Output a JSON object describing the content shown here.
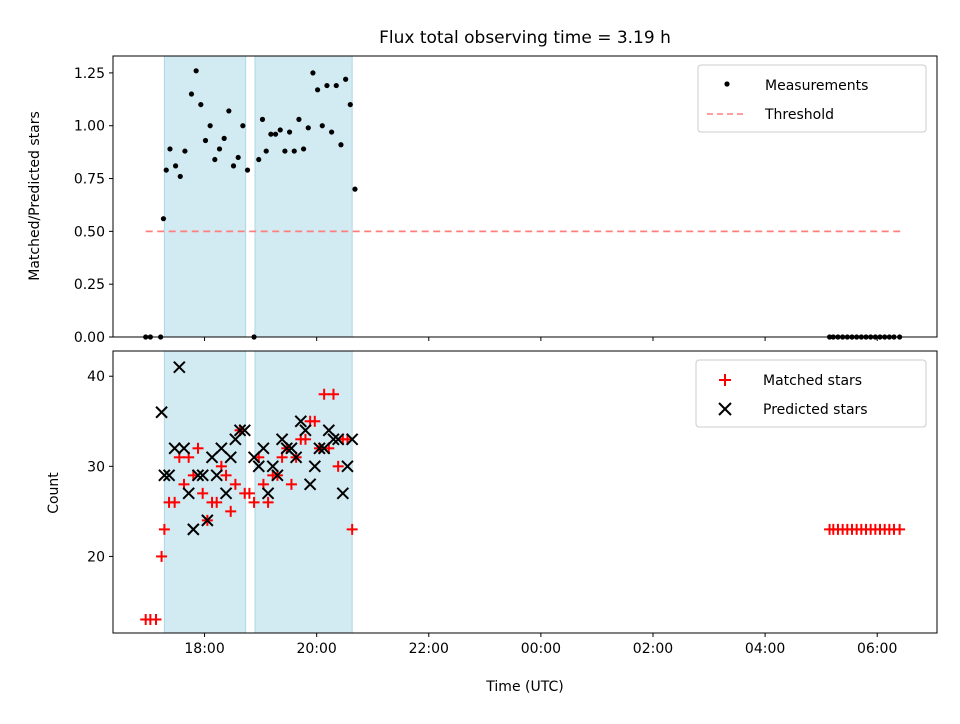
{
  "chart_data": [
    {
      "type": "scatter",
      "title": "Flux total observing time = 3.19 h",
      "xlabel": "",
      "ylabel": "Matched/Predicted stars",
      "ylim": [
        0,
        1.33
      ],
      "xlim": [
        "16:22",
        "07:04"
      ],
      "y_ticks": [
        "0.00",
        "0.25",
        "0.50",
        "0.75",
        "1.00",
        "1.25"
      ],
      "x_tick_labels_shown": false,
      "legend_position": "top-right",
      "legend": [
        "Measurements",
        "Threshold"
      ],
      "shaded_intervals": [
        [
          "17:17",
          "18:44"
        ],
        [
          "18:54",
          "20:38"
        ]
      ],
      "threshold": {
        "name": "Threshold",
        "value": 0.5,
        "x_range": [
          "16:57",
          "06:25"
        ],
        "color": "#ff7f7f",
        "style": "dashed"
      },
      "series": [
        {
          "name": "Measurements",
          "marker": "dot",
          "color": "#000000",
          "points": [
            [
              "16:57",
              0.0
            ],
            [
              "17:02",
              0.0
            ],
            [
              "17:13",
              0.0
            ],
            [
              "17:16",
              0.56
            ],
            [
              "17:19",
              0.79
            ],
            [
              "17:23",
              0.89
            ],
            [
              "17:29",
              0.81
            ],
            [
              "17:34",
              0.76
            ],
            [
              "17:39",
              0.88
            ],
            [
              "17:46",
              1.15
            ],
            [
              "17:51",
              1.26
            ],
            [
              "17:56",
              1.1
            ],
            [
              "18:01",
              0.93
            ],
            [
              "18:06",
              1.0
            ],
            [
              "18:11",
              0.84
            ],
            [
              "18:16",
              0.89
            ],
            [
              "18:21",
              0.94
            ],
            [
              "18:26",
              1.07
            ],
            [
              "18:31",
              0.81
            ],
            [
              "18:36",
              0.85
            ],
            [
              "18:41",
              1.0
            ],
            [
              "18:46",
              0.79
            ],
            [
              "18:53",
              0.0
            ],
            [
              "18:58",
              0.84
            ],
            [
              "19:02",
              1.03
            ],
            [
              "19:06",
              0.88
            ],
            [
              "19:11",
              0.96
            ],
            [
              "19:16",
              0.96
            ],
            [
              "19:21",
              0.98
            ],
            [
              "19:26",
              0.88
            ],
            [
              "19:31",
              0.97
            ],
            [
              "19:36",
              0.88
            ],
            [
              "19:41",
              1.03
            ],
            [
              "19:46",
              0.89
            ],
            [
              "19:51",
              0.99
            ],
            [
              "19:56",
              1.25
            ],
            [
              "20:01",
              1.17
            ],
            [
              "20:06",
              1.0
            ],
            [
              "20:11",
              1.19
            ],
            [
              "20:16",
              0.97
            ],
            [
              "20:21",
              1.19
            ],
            [
              "20:26",
              0.91
            ],
            [
              "20:31",
              1.22
            ],
            [
              "20:36",
              1.1
            ],
            [
              "20:41",
              0.7
            ],
            [
              "05:09",
              0.0
            ],
            [
              "05:13",
              0.0
            ],
            [
              "05:18",
              0.0
            ],
            [
              "05:23",
              0.0
            ],
            [
              "05:28",
              0.0
            ],
            [
              "05:33",
              0.0
            ],
            [
              "05:38",
              0.0
            ],
            [
              "05:43",
              0.0
            ],
            [
              "05:48",
              0.0
            ],
            [
              "05:53",
              0.0
            ],
            [
              "05:58",
              0.0
            ],
            [
              "06:03",
              0.0
            ],
            [
              "06:08",
              0.0
            ],
            [
              "06:13",
              0.0
            ],
            [
              "06:18",
              0.0
            ],
            [
              "06:24",
              0.0
            ]
          ]
        }
      ]
    },
    {
      "type": "scatter",
      "title": "",
      "xlabel": "Time (UTC)",
      "ylabel": "Count",
      "ylim": [
        11.5,
        42.8
      ],
      "xlim": [
        "16:22",
        "07:04"
      ],
      "y_ticks": [
        "20",
        "30",
        "40"
      ],
      "x_ticks": [
        "18:00",
        "20:00",
        "22:00",
        "00:00",
        "02:00",
        "04:00",
        "06:00"
      ],
      "legend_position": "top-right",
      "legend": [
        "Matched stars",
        "Predicted stars"
      ],
      "shaded_intervals": [
        [
          "17:17",
          "18:44"
        ],
        [
          "18:54",
          "20:38"
        ]
      ],
      "series": [
        {
          "name": "Matched stars",
          "marker": "plus",
          "color": "#ff0000",
          "points": [
            [
              "16:57",
              13
            ],
            [
              "17:02",
              13
            ],
            [
              "17:08",
              13
            ],
            [
              "17:14",
              20
            ],
            [
              "17:17",
              23
            ],
            [
              "17:22",
              26
            ],
            [
              "17:28",
              26
            ],
            [
              "17:33",
              31
            ],
            [
              "17:38",
              28
            ],
            [
              "17:43",
              31
            ],
            [
              "17:48",
              29
            ],
            [
              "17:53",
              32
            ],
            [
              "17:58",
              27
            ],
            [
              "18:03",
              24
            ],
            [
              "18:08",
              26
            ],
            [
              "18:13",
              26
            ],
            [
              "18:18",
              30
            ],
            [
              "18:23",
              29
            ],
            [
              "18:28",
              25
            ],
            [
              "18:33",
              28
            ],
            [
              "18:38",
              34
            ],
            [
              "18:43",
              27
            ],
            [
              "18:48",
              27
            ],
            [
              "18:53",
              26
            ],
            [
              "18:58",
              31
            ],
            [
              "19:03",
              28
            ],
            [
              "19:08",
              26
            ],
            [
              "19:13",
              29
            ],
            [
              "19:18",
              29
            ],
            [
              "19:23",
              31
            ],
            [
              "19:28",
              32
            ],
            [
              "19:33",
              28
            ],
            [
              "19:38",
              31
            ],
            [
              "19:43",
              33
            ],
            [
              "19:48",
              33
            ],
            [
              "19:53",
              35
            ],
            [
              "19:58",
              35
            ],
            [
              "20:03",
              32
            ],
            [
              "20:08",
              38
            ],
            [
              "20:13",
              32
            ],
            [
              "20:18",
              38
            ],
            [
              "20:23",
              30
            ],
            [
              "20:28",
              33
            ],
            [
              "20:33",
              33
            ],
            [
              "20:38",
              23
            ],
            [
              "05:09",
              23
            ],
            [
              "05:13",
              23
            ],
            [
              "05:18",
              23
            ],
            [
              "05:23",
              23
            ],
            [
              "05:28",
              23
            ],
            [
              "05:33",
              23
            ],
            [
              "05:38",
              23
            ],
            [
              "05:43",
              23
            ],
            [
              "05:48",
              23
            ],
            [
              "05:53",
              23
            ],
            [
              "05:58",
              23
            ],
            [
              "06:03",
              23
            ],
            [
              "06:08",
              23
            ],
            [
              "06:13",
              23
            ],
            [
              "06:18",
              23
            ],
            [
              "06:24",
              23
            ]
          ]
        },
        {
          "name": "Predicted stars",
          "marker": "x",
          "color": "#000000",
          "points": [
            [
              "17:14",
              36
            ],
            [
              "17:17",
              29
            ],
            [
              "17:22",
              29
            ],
            [
              "17:28",
              32
            ],
            [
              "17:33",
              41
            ],
            [
              "17:38",
              32
            ],
            [
              "17:43",
              27
            ],
            [
              "17:48",
              23
            ],
            [
              "17:53",
              29
            ],
            [
              "17:58",
              29
            ],
            [
              "18:03",
              24
            ],
            [
              "18:08",
              31
            ],
            [
              "18:13",
              29
            ],
            [
              "18:18",
              32
            ],
            [
              "18:23",
              27
            ],
            [
              "18:28",
              31
            ],
            [
              "18:33",
              33
            ],
            [
              "18:38",
              34
            ],
            [
              "18:43",
              34
            ],
            [
              "18:53",
              31
            ],
            [
              "18:58",
              30
            ],
            [
              "19:03",
              32
            ],
            [
              "19:08",
              27
            ],
            [
              "19:13",
              30
            ],
            [
              "19:18",
              29
            ],
            [
              "19:23",
              33
            ],
            [
              "19:28",
              32
            ],
            [
              "19:33",
              32
            ],
            [
              "19:38",
              31
            ],
            [
              "19:43",
              35
            ],
            [
              "19:48",
              34
            ],
            [
              "19:53",
              28
            ],
            [
              "19:58",
              30
            ],
            [
              "20:03",
              32
            ],
            [
              "20:08",
              32
            ],
            [
              "20:13",
              34
            ],
            [
              "20:18",
              33
            ],
            [
              "20:23",
              33
            ],
            [
              "20:28",
              27
            ],
            [
              "20:33",
              30
            ],
            [
              "20:38",
              33
            ]
          ]
        }
      ]
    }
  ],
  "style": {
    "shade_color": "#add8e6",
    "threshold_color": "#ff7f7f",
    "matched_color": "#ff0000",
    "measurement_color": "#000000"
  }
}
